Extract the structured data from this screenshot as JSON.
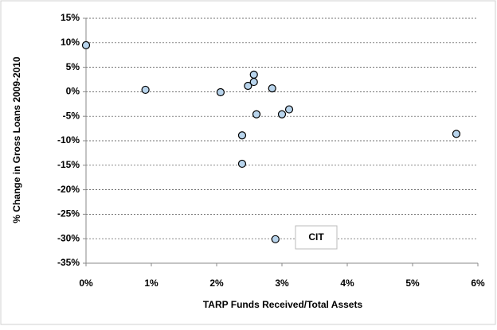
{
  "chart_data": {
    "type": "scatter",
    "x_label": "TARP Funds Received/Total Assets",
    "y_label": "% Change in Gross Loans 2009-2010",
    "x": [
      0,
      0.91,
      2.06,
      2.48,
      2.57,
      2.57,
      2.85,
      2.61,
      3.0,
      3.11,
      2.39,
      2.39,
      2.9,
      5.67
    ],
    "values": [
      9.5,
      0.4,
      -0.1,
      1.2,
      2.0,
      3.5,
      0.7,
      -4.6,
      -4.6,
      -3.6,
      -8.9,
      -14.7,
      -30.1,
      -8.6
    ],
    "color": "#b8d4ec",
    "annotation": "CIT",
    "xlim": [
      0,
      6
    ],
    "xticks": [
      {
        "value": 0,
        "label": "0%"
      },
      {
        "value": 1,
        "label": "1%"
      },
      {
        "value": 2,
        "label": "2%"
      },
      {
        "value": 3,
        "label": "3%"
      },
      {
        "value": 4,
        "label": "4%"
      },
      {
        "value": 5,
        "label": "5%"
      },
      {
        "value": 6,
        "label": "6%"
      }
    ],
    "ylim": [
      -35,
      15
    ],
    "yticks": [
      {
        "value": 15,
        "label": "15%"
      },
      {
        "value": 10,
        "label": "10%"
      },
      {
        "value": 5,
        "label": "5%"
      },
      {
        "value": 0,
        "label": "0%"
      },
      {
        "value": -5,
        "label": "-5%"
      },
      {
        "value": -10,
        "label": "-10%"
      },
      {
        "value": -15,
        "label": "-15%"
      },
      {
        "value": -20,
        "label": "-20%"
      },
      {
        "value": -25,
        "label": "-25%"
      },
      {
        "value": -30,
        "label": "-30%"
      },
      {
        "value": -35,
        "label": "-35%"
      }
    ],
    "grid": true
  }
}
